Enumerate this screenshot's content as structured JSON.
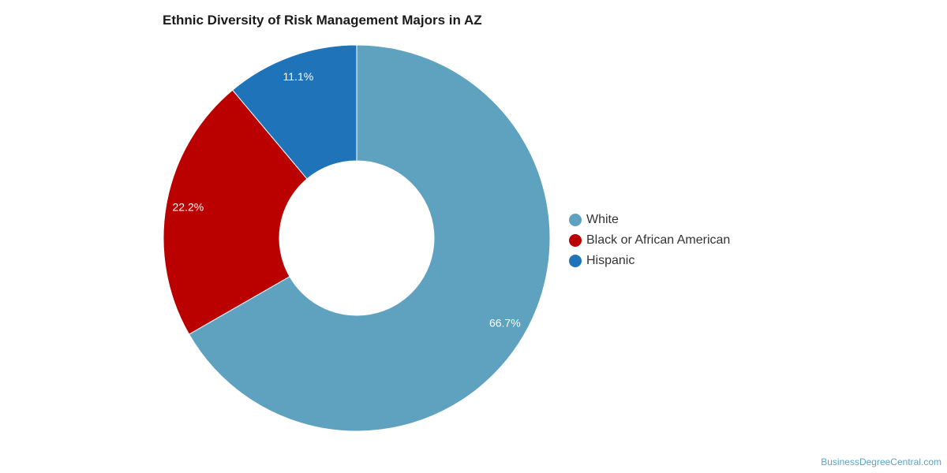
{
  "chart_data": {
    "type": "pie",
    "title": "Ethnic Diversity of Risk Management Majors in AZ",
    "donut": true,
    "categories": [
      "White",
      "Black or African American",
      "Hispanic"
    ],
    "values": [
      66.7,
      22.2,
      11.1
    ],
    "labels": [
      "66.7%",
      "22.2%",
      "11.1%"
    ],
    "colors": [
      "#5ea2c0",
      "#bb0000",
      "#1f73b9"
    ],
    "legend_position": "right"
  },
  "watermark": "BusinessDegreeCentral.com"
}
